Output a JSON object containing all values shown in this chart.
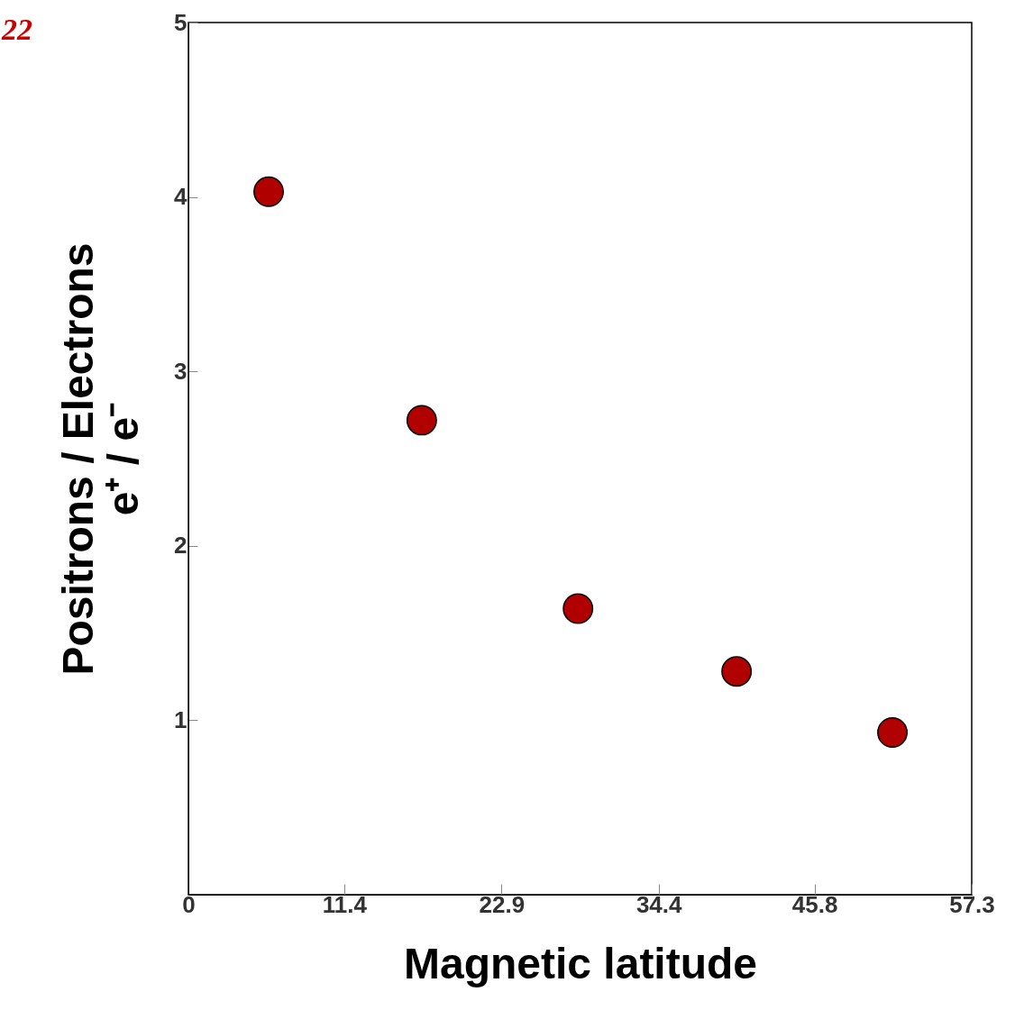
{
  "chart_data": {
    "type": "scatter",
    "xlabel": "Magnetic latitude",
    "ylabel": "Positrons / Electrons\ne⁺ / e⁻",
    "annotations": [
      "22"
    ],
    "x": [
      5.87,
      17.07,
      28.5,
      40.1,
      51.5
    ],
    "series": [
      {
        "color": "#b00000",
        "values": [
          4.03,
          2.72,
          1.64,
          1.28,
          0.93
        ]
      }
    ],
    "xlim": [
      0,
      57.3
    ],
    "xticks": [
      0,
      11.4,
      22.9,
      34.4,
      45.8,
      57.3
    ],
    "ylim": [
      0,
      5
    ],
    "yticks": [
      1,
      2,
      3,
      4,
      5
    ],
    "marker": "circle",
    "grid": false,
    "legend": false
  }
}
